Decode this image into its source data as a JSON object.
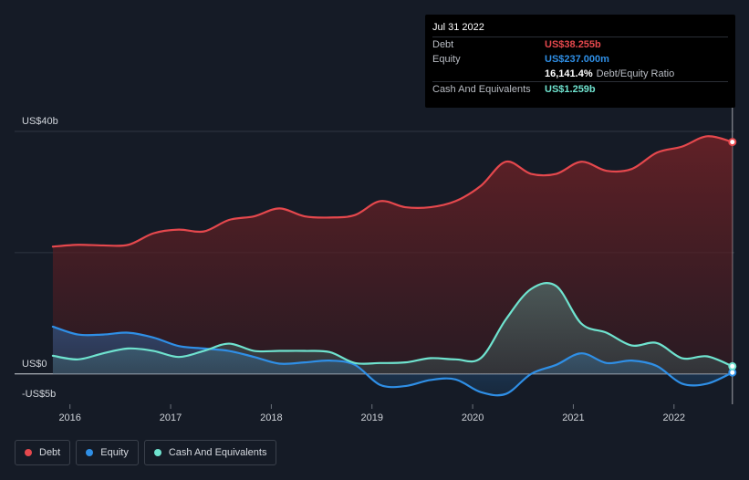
{
  "tooltip": {
    "date": "Jul 31 2022",
    "rows": [
      {
        "label": "Debt",
        "value": "US$38.255b",
        "color": "#e5484d"
      },
      {
        "label": "Equity",
        "value": "US$237.000m",
        "color": "#2f8fe6"
      },
      {
        "label": "",
        "value": "16,141.4%",
        "extra": "Debt/Equity Ratio",
        "color": "#ffffff"
      },
      {
        "label": "Cash And Equivalents",
        "value": "US$1.259b",
        "color": "#6fe3cf"
      }
    ]
  },
  "legend": [
    {
      "label": "Debt",
      "color": "#e5484d"
    },
    {
      "label": "Equity",
      "color": "#2f8fe6"
    },
    {
      "label": "Cash And Equivalents",
      "color": "#6fe3cf"
    }
  ],
  "chart_data": {
    "type": "line",
    "y_tick_labels": [
      "US$40b",
      "US$0",
      "-US$5b"
    ],
    "x_tick_labels": [
      "2016",
      "2017",
      "2018",
      "2019",
      "2020",
      "2021",
      "2022"
    ],
    "ylim": [
      -5,
      40
    ],
    "xlim": [
      2015.45,
      2022.6
    ],
    "grid": true,
    "legend_position": "bottom-left",
    "series": [
      {
        "name": "Debt",
        "color": "#e5484d",
        "x": [
          2015.83,
          2016.08,
          2016.33,
          2016.58,
          2016.83,
          2017.08,
          2017.33,
          2017.58,
          2017.83,
          2018.08,
          2018.33,
          2018.58,
          2018.83,
          2019.08,
          2019.33,
          2019.58,
          2019.83,
          2020.08,
          2020.33,
          2020.58,
          2020.83,
          2021.08,
          2021.33,
          2021.58,
          2021.83,
          2022.08,
          2022.33,
          2022.58
        ],
        "y": [
          21,
          21.3,
          21.2,
          21.3,
          23.2,
          23.8,
          23.5,
          25.4,
          26,
          27.3,
          26,
          25.8,
          26.2,
          28.5,
          27.5,
          27.5,
          28.5,
          31,
          35,
          33,
          33,
          35,
          33.5,
          33.8,
          36.5,
          37.5,
          39.2,
          38.255
        ]
      },
      {
        "name": "Equity",
        "color": "#2f8fe6",
        "x": [
          2015.83,
          2016.08,
          2016.33,
          2016.58,
          2016.83,
          2017.08,
          2017.33,
          2017.58,
          2017.83,
          2018.08,
          2018.33,
          2018.58,
          2018.83,
          2019.08,
          2019.33,
          2019.58,
          2019.83,
          2020.08,
          2020.33,
          2020.58,
          2020.83,
          2021.08,
          2021.33,
          2021.58,
          2021.83,
          2022.08,
          2022.33,
          2022.58
        ],
        "y": [
          7.8,
          6.5,
          6.5,
          6.8,
          6,
          4.6,
          4.2,
          3.8,
          2.8,
          1.7,
          1.9,
          2.2,
          1.5,
          -1.8,
          -2,
          -1,
          -0.9,
          -3,
          -3.3,
          0,
          1.5,
          3.4,
          1.8,
          2.2,
          1.3,
          -1.6,
          -1.6,
          0.237
        ]
      },
      {
        "name": "Cash And Equivalents",
        "color": "#6fe3cf",
        "x": [
          2015.83,
          2016.08,
          2016.33,
          2016.58,
          2016.83,
          2017.08,
          2017.33,
          2017.58,
          2017.83,
          2018.08,
          2018.33,
          2018.58,
          2018.83,
          2019.08,
          2019.33,
          2019.58,
          2019.83,
          2020.08,
          2020.33,
          2020.58,
          2020.83,
          2021.08,
          2021.33,
          2021.58,
          2021.83,
          2022.08,
          2022.33,
          2022.58
        ],
        "y": [
          3,
          2.4,
          3.4,
          4.2,
          3.8,
          2.8,
          3.8,
          5,
          3.8,
          3.8,
          3.8,
          3.6,
          1.8,
          1.8,
          1.9,
          2.6,
          2.4,
          2.6,
          9,
          14,
          14.5,
          8.3,
          6.8,
          4.7,
          5.1,
          2.6,
          2.9,
          1.259
        ]
      }
    ]
  }
}
